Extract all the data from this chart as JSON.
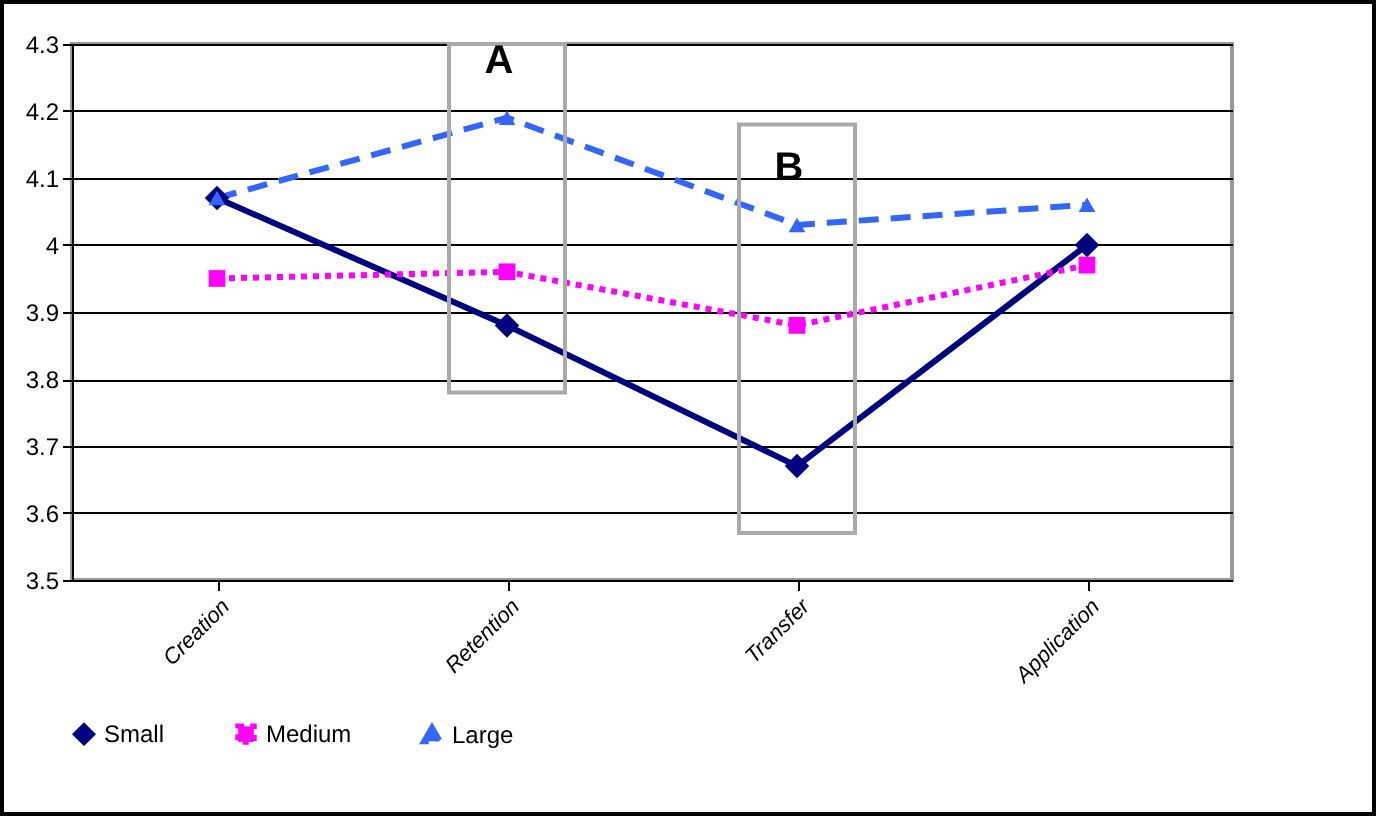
{
  "chart_data": {
    "type": "line",
    "categories": [
      "Creation",
      "Retention",
      "Transfer",
      "Application"
    ],
    "series": [
      {
        "name": "Small",
        "color": "#000080",
        "marker": "diamond",
        "line_style": "solid",
        "values": [
          4.07,
          3.88,
          3.67,
          4.0
        ]
      },
      {
        "name": "Medium",
        "color": "#ff00ff",
        "marker": "square",
        "line_style": "dotted",
        "values": [
          3.95,
          3.96,
          3.88,
          3.97
        ]
      },
      {
        "name": "Large",
        "color": "#3366ff",
        "marker": "triangle",
        "line_style": "dashed",
        "values": [
          4.07,
          4.19,
          4.03,
          4.06
        ]
      }
    ],
    "ylim": [
      3.5,
      4.3
    ],
    "yticks": [
      3.5,
      3.6,
      3.7,
      3.8,
      3.9,
      4,
      4.1,
      4.2,
      4.3
    ],
    "grid": "y",
    "legend": "bottom",
    "annotations": [
      "A",
      "B"
    ]
  }
}
